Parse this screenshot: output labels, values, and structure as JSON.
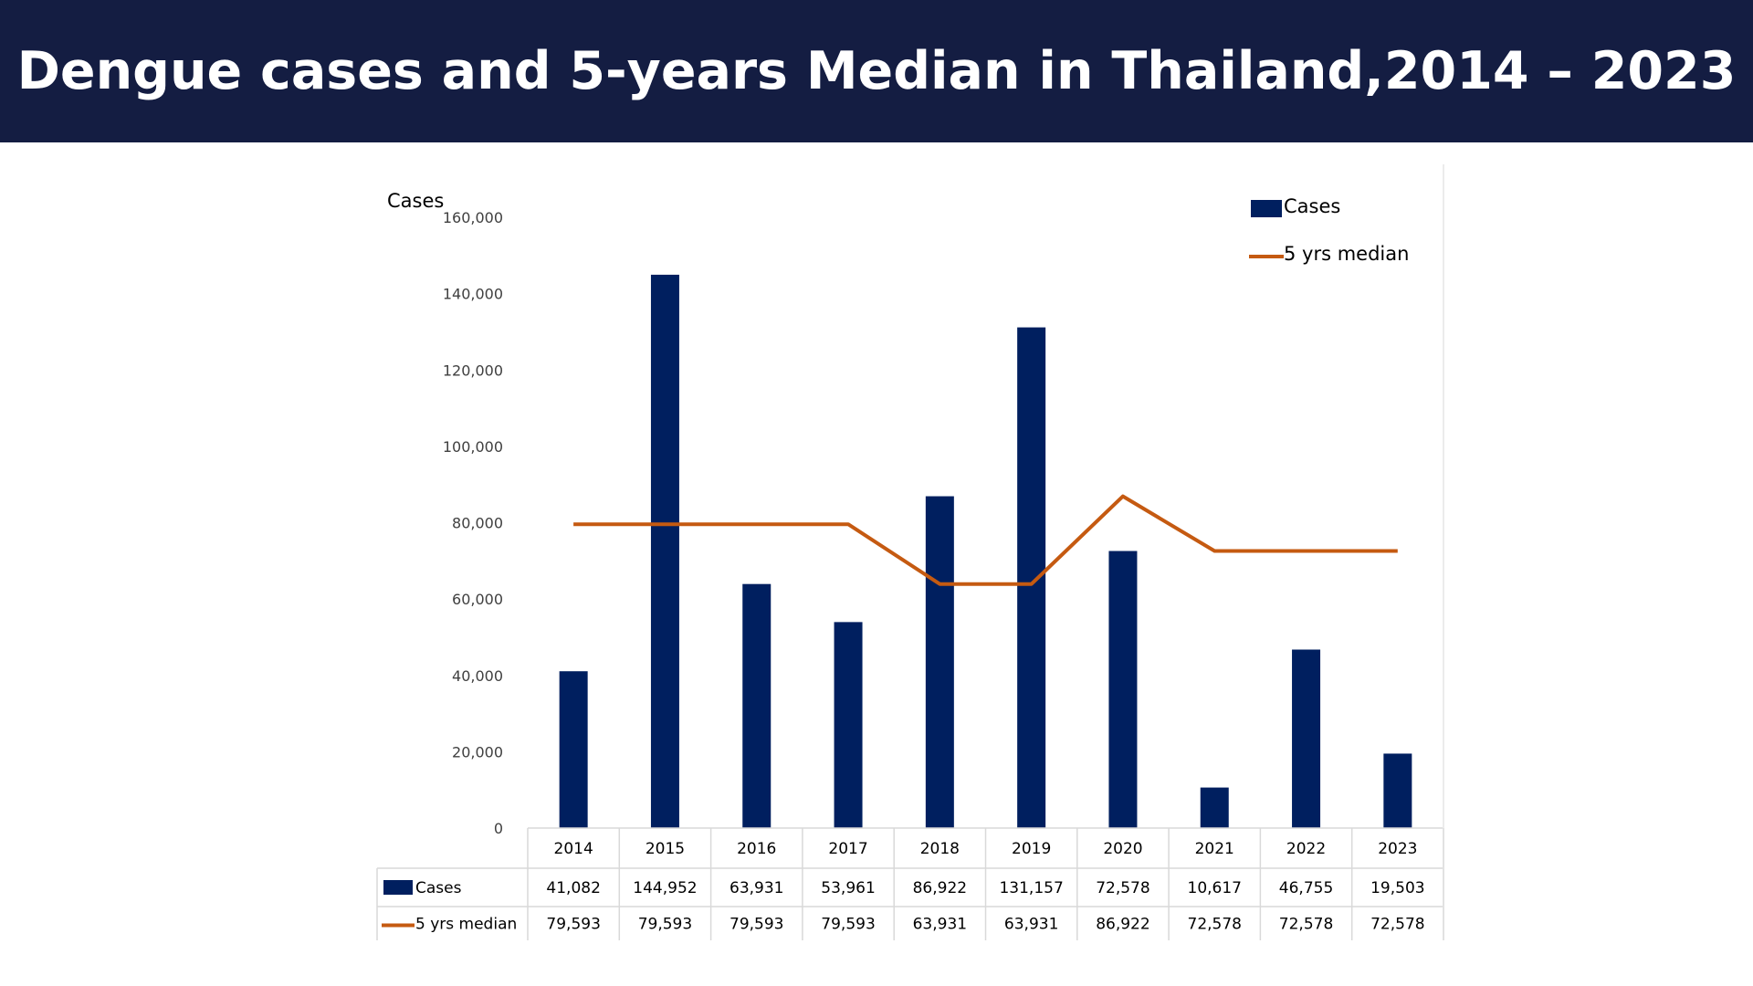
{
  "header": {
    "title": "Dengue cases and 5-years Median in Thailand,2014 – 2023"
  },
  "colors": {
    "header_bg": "#141d42",
    "bar": "#001f5f",
    "line": "#c55a11"
  },
  "chart_data": {
    "type": "bar",
    "title": "Dengue cases and 5-years Median in Thailand,2014 – 2023",
    "ylabel": "Cases",
    "xlabel": "",
    "ylim": [
      0,
      160000
    ],
    "yticks": [
      0,
      20000,
      40000,
      60000,
      80000,
      100000,
      120000,
      140000,
      160000
    ],
    "ytick_labels": [
      "0",
      "20,000",
      "40,000",
      "60,000",
      "80,000",
      "100,000",
      "120,000",
      "140,000",
      "160,000"
    ],
    "categories": [
      "2014",
      "2015",
      "2016",
      "2017",
      "2018",
      "2019",
      "2020",
      "2021",
      "2022",
      "2023"
    ],
    "series": [
      {
        "name": "Cases",
        "type": "bar",
        "values": [
          41082,
          144952,
          63931,
          53961,
          86922,
          131157,
          72578,
          10617,
          46755,
          19503
        ],
        "labels": [
          "41,082",
          "144,952",
          "63,931",
          "53,961",
          "86,922",
          "131,157",
          "72,578",
          "10,617",
          "46,755",
          "19,503"
        ]
      },
      {
        "name": "5 yrs median",
        "type": "line",
        "values": [
          79593,
          79593,
          79593,
          79593,
          63931,
          63931,
          86922,
          72578,
          72578,
          72578
        ],
        "labels": [
          "79,593",
          "79,593",
          "79,593",
          "79,593",
          "63,931",
          "63,931",
          "86,922",
          "72,578",
          "72,578",
          "72,578"
        ]
      }
    ],
    "legend": {
      "placement": "top-right",
      "entries": [
        "Cases",
        "5 yrs median"
      ]
    },
    "data_table": true,
    "grid": false
  }
}
